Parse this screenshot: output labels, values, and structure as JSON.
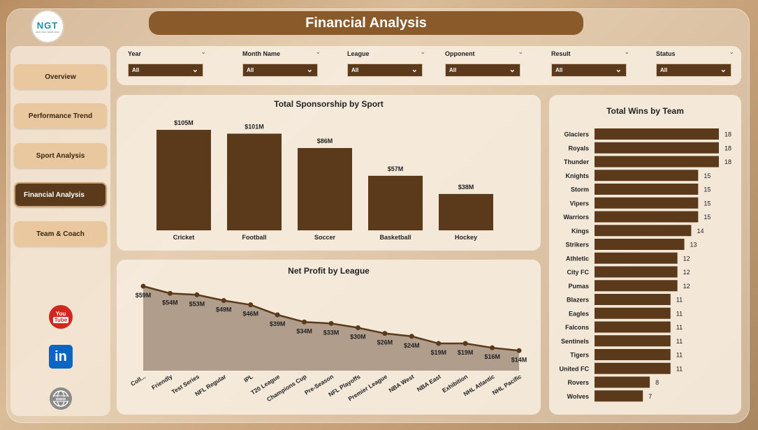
{
  "header": {
    "title": "Financial Analysis",
    "logo_text": "NGT",
    "logo_subtext": "NEXT GEN TEMPLATES"
  },
  "sidebar": {
    "items": [
      {
        "label": "Overview"
      },
      {
        "label": "Performance Trend"
      },
      {
        "label": "Sport Analysis"
      },
      {
        "label": "Financial Analysis",
        "active": true
      },
      {
        "label": "Team & Coach"
      }
    ],
    "social": [
      {
        "icon": "youtube-icon",
        "label_top": "You",
        "label_bottom": "Tube"
      },
      {
        "icon": "linkedin-icon",
        "label": "in"
      },
      {
        "icon": "globe-www-icon",
        "label": "www"
      }
    ]
  },
  "filters": [
    {
      "label": "Year",
      "value": "All"
    },
    {
      "label": "Month Name",
      "value": "All"
    },
    {
      "label": "League",
      "value": "All"
    },
    {
      "label": "Opponent",
      "value": "All"
    },
    {
      "label": "Result",
      "value": "All"
    },
    {
      "label": "Status",
      "value": "All"
    }
  ],
  "colors": {
    "accent": "#5a3a1b",
    "title_bar": "#8b5a2b",
    "nav_button": "#e9c79f",
    "area_fill": "#a58f7e"
  },
  "chart_data": [
    {
      "id": "sponsorship",
      "type": "bar",
      "title": "Total Sponsorship by Sport",
      "categories": [
        "Cricket",
        "Football",
        "Soccer",
        "Basketball",
        "Hockey"
      ],
      "values": [
        105,
        101,
        86,
        57,
        38
      ],
      "labels": [
        "$105M",
        "$101M",
        "$86M",
        "$57M",
        "$38M"
      ],
      "unit": "$M",
      "ylim": [
        0,
        105
      ]
    },
    {
      "id": "netprofit",
      "type": "area",
      "title": "Net Profit by League",
      "categories": [
        "Coll...",
        "Friendly",
        "Test Series",
        "NFL Regular",
        "IPL",
        "T20 League",
        "Champions Cup",
        "Pre-Season",
        "NFL Playoffs",
        "Premier League",
        "NBA West",
        "NBA East",
        "Exhibition",
        "NHL Atlantic",
        "NHL Pacific"
      ],
      "values": [
        59,
        54,
        53,
        49,
        46,
        39,
        34,
        33,
        30,
        26,
        24,
        19,
        19,
        16,
        14
      ],
      "labels": [
        "$59M",
        "$54M",
        "$53M",
        "$49M",
        "$46M",
        "$39M",
        "$34M",
        "$33M",
        "$30M",
        "$26M",
        "$24M",
        "$19M",
        "$19M",
        "$16M",
        "$14M"
      ],
      "unit": "$M",
      "ylim": [
        0,
        59
      ]
    },
    {
      "id": "wins",
      "type": "bar",
      "orientation": "horizontal",
      "title": "Total Wins by Team",
      "categories": [
        "Glaciers",
        "Royals",
        "Thunder",
        "Knights",
        "Storm",
        "Vipers",
        "Warriors",
        "Kings",
        "Strikers",
        "Athletic",
        "City FC",
        "Pumas",
        "Blazers",
        "Eagles",
        "Falcons",
        "Sentinels",
        "Tigers",
        "United FC",
        "Rovers",
        "Wolves"
      ],
      "values": [
        18,
        18,
        18,
        15,
        15,
        15,
        15,
        14,
        13,
        12,
        12,
        12,
        11,
        11,
        11,
        11,
        11,
        11,
        8,
        7
      ],
      "xlim": [
        0,
        18
      ]
    }
  ]
}
